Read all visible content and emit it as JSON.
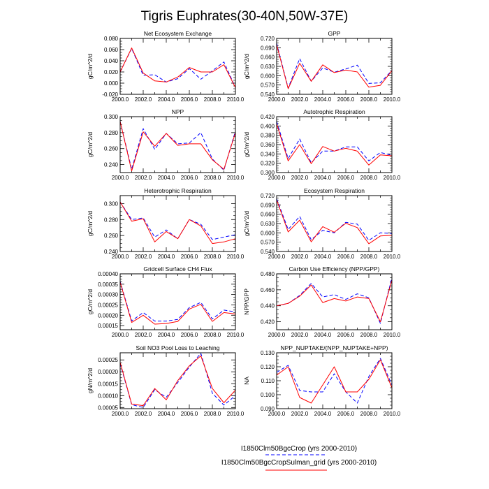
{
  "page": {
    "title": "Tigris Euphrates(30-40N,50W-37E)"
  },
  "legend": [
    {
      "label": "I1850Clm50BgcCrop (yrs 2000-2010)",
      "color": "#0000ff",
      "dash": "dashed"
    },
    {
      "label": "I1850Clm50BgcCropSulman_grid (yrs 2000-2010)",
      "color": "#ff0000",
      "dash": "solid"
    }
  ],
  "colors": {
    "series_a": "#0000ff",
    "series_b": "#ff0000"
  },
  "chart_data": [
    {
      "type": "line",
      "title": "Net Ecosystem Exchange",
      "ylabel": "gC/m^2/d",
      "x": [
        2000,
        2001,
        2002,
        2003,
        2004,
        2005,
        2006,
        2007,
        2008,
        2009,
        2010
      ],
      "xticks": [
        "2000.0",
        "2002.0",
        "2004.0",
        "2006.0",
        "2008.0",
        "2010.0"
      ],
      "xlim": [
        2000,
        2010
      ],
      "ylim": [
        -0.02,
        0.08
      ],
      "yticks": [
        "-0.020",
        "0.000",
        "0.020",
        "0.040",
        "0.060",
        "0.080"
      ],
      "series": [
        {
          "name": "I1850Clm50BgcCrop (yrs 2000-2010)",
          "values": [
            0.02,
            0.062,
            0.014,
            0.015,
            0.002,
            0.008,
            0.026,
            0.007,
            0.022,
            0.038,
            -0.008
          ]
        },
        {
          "name": "I1850Clm50BgcCropSulman_grid (yrs 2000-2010)",
          "values": [
            0.02,
            0.063,
            0.018,
            0.004,
            0.002,
            0.011,
            0.028,
            0.02,
            0.02,
            0.033,
            -0.008
          ]
        }
      ]
    },
    {
      "type": "line",
      "title": "GPP",
      "ylabel": "gC/m^2/d",
      "x": [
        2000,
        2001,
        2002,
        2003,
        2004,
        2005,
        2006,
        2007,
        2008,
        2009,
        2010
      ],
      "xticks": [
        "2000.0",
        "2002.0",
        "2004.0",
        "2006.0",
        "2008.0",
        "2010.0"
      ],
      "xlim": [
        2000,
        2010
      ],
      "ylim": [
        0.54,
        0.72
      ],
      "yticks": [
        "0.540",
        "0.570",
        "0.600",
        "0.630",
        "0.660",
        "0.690",
        "0.720"
      ],
      "series": [
        {
          "name": "I1850Clm50BgcCrop (yrs 2000-2010)",
          "values": [
            0.705,
            0.56,
            0.655,
            0.582,
            0.625,
            0.611,
            0.622,
            0.634,
            0.575,
            0.577,
            0.617
          ]
        },
        {
          "name": "I1850Clm50BgcCropSulman_grid (yrs 2000-2010)",
          "values": [
            0.7,
            0.558,
            0.64,
            0.582,
            0.635,
            0.61,
            0.618,
            0.612,
            0.563,
            0.569,
            0.616
          ]
        }
      ]
    },
    {
      "type": "line",
      "title": "NPP",
      "ylabel": "gC/m^2/d",
      "x": [
        2000,
        2001,
        2002,
        2003,
        2004,
        2005,
        2006,
        2007,
        2008,
        2009,
        2010
      ],
      "xticks": [
        "2000.0",
        "2002.0",
        "2004.0",
        "2006.0",
        "2008.0",
        "2010.0"
      ],
      "xlim": [
        2000,
        2010
      ],
      "ylim": [
        0.23,
        0.3
      ],
      "yticks": [
        "0.240",
        "0.260",
        "0.280",
        "0.300"
      ],
      "series": [
        {
          "name": "I1850Clm50BgcCrop (yrs 2000-2010)",
          "values": [
            0.294,
            0.234,
            0.285,
            0.259,
            0.279,
            0.266,
            0.267,
            0.28,
            0.247,
            0.233,
            0.282
          ]
        },
        {
          "name": "I1850Clm50BgcCropSulman_grid (yrs 2000-2010)",
          "values": [
            0.294,
            0.232,
            0.281,
            0.263,
            0.279,
            0.264,
            0.266,
            0.266,
            0.246,
            0.234,
            0.28
          ]
        }
      ]
    },
    {
      "type": "line",
      "title": "Autotrophic Respiration",
      "ylabel": "gC/m^2/d",
      "x": [
        2000,
        2001,
        2002,
        2003,
        2004,
        2005,
        2006,
        2007,
        2008,
        2009,
        2010
      ],
      "xticks": [
        "2000.0",
        "2002.0",
        "2004.0",
        "2006.0",
        "2008.0",
        "2010.0"
      ],
      "xlim": [
        2000,
        2010
      ],
      "ylim": [
        0.3,
        0.42
      ],
      "yticks": [
        "0.300",
        "0.320",
        "0.340",
        "0.360",
        "0.380",
        "0.400",
        "0.420"
      ],
      "series": [
        {
          "name": "I1850Clm50BgcCrop (yrs 2000-2010)",
          "values": [
            0.41,
            0.33,
            0.372,
            0.321,
            0.346,
            0.346,
            0.355,
            0.355,
            0.325,
            0.343,
            0.337
          ]
        },
        {
          "name": "I1850Clm50BgcCropSulman_grid (yrs 2000-2010)",
          "values": [
            0.405,
            0.325,
            0.36,
            0.319,
            0.356,
            0.346,
            0.352,
            0.346,
            0.316,
            0.338,
            0.336
          ]
        }
      ]
    },
    {
      "type": "line",
      "title": "Heterotrophic Respiration",
      "ylabel": "gC/m^2/d",
      "x": [
        2000,
        2001,
        2002,
        2003,
        2004,
        2005,
        2006,
        2007,
        2008,
        2009,
        2010
      ],
      "xticks": [
        "2000.0",
        "2002.0",
        "2004.0",
        "2006.0",
        "2008.0",
        "2010.0"
      ],
      "xlim": [
        2000,
        2010
      ],
      "ylim": [
        0.24,
        0.31
      ],
      "yticks": [
        "0.240",
        "0.260",
        "0.280",
        "0.300"
      ],
      "series": [
        {
          "name": "I1850Clm50BgcCrop (yrs 2000-2010)",
          "values": [
            0.302,
            0.28,
            0.282,
            0.258,
            0.267,
            0.256,
            0.28,
            0.274,
            0.255,
            0.258,
            0.261
          ]
        },
        {
          "name": "I1850Clm50BgcCropSulman_grid (yrs 2000-2010)",
          "values": [
            0.302,
            0.278,
            0.281,
            0.252,
            0.265,
            0.256,
            0.28,
            0.272,
            0.25,
            0.252,
            0.256
          ]
        }
      ]
    },
    {
      "type": "line",
      "title": "Ecosystem Respiration",
      "ylabel": "gC/m^2/d",
      "x": [
        2000,
        2001,
        2002,
        2003,
        2004,
        2005,
        2006,
        2007,
        2008,
        2009,
        2010
      ],
      "xticks": [
        "2000.0",
        "2002.0",
        "2004.0",
        "2006.0",
        "2008.0",
        "2010.0"
      ],
      "xlim": [
        2000,
        2010
      ],
      "ylim": [
        0.54,
        0.72
      ],
      "yticks": [
        "0.540",
        "0.570",
        "0.600",
        "0.630",
        "0.660",
        "0.690",
        "0.720"
      ],
      "series": [
        {
          "name": "I1850Clm50BgcCrop (yrs 2000-2010)",
          "values": [
            0.71,
            0.611,
            0.653,
            0.578,
            0.608,
            0.6,
            0.634,
            0.628,
            0.576,
            0.6,
            0.598
          ]
        },
        {
          "name": "I1850Clm50BgcCropSulman_grid (yrs 2000-2010)",
          "values": [
            0.706,
            0.603,
            0.641,
            0.571,
            0.62,
            0.602,
            0.631,
            0.617,
            0.565,
            0.59,
            0.592
          ]
        }
      ]
    },
    {
      "type": "line",
      "title": "Gridcell Surface CH4 Flux",
      "ylabel": "gC/m^2/d",
      "x": [
        2000,
        2001,
        2002,
        2003,
        2004,
        2005,
        2006,
        2007,
        2008,
        2009,
        2010
      ],
      "xticks": [
        "2000.0",
        "2002.0",
        "2004.0",
        "2006.0",
        "2008.0",
        "2010.0"
      ],
      "xlim": [
        2000,
        2010
      ],
      "ylim": [
        0.00013,
        0.0004
      ],
      "yticks": [
        "0.00015",
        "0.00020",
        "0.00025",
        "0.00030",
        "0.00035",
        "0.00040"
      ],
      "series": [
        {
          "name": "I1850Clm50BgcCrop (yrs 2000-2010)",
          "values": [
            0.000363,
            0.000173,
            0.000213,
            0.000172,
            0.000172,
            0.00018,
            0.000237,
            0.000262,
            0.000182,
            0.000225,
            0.000216
          ]
        },
        {
          "name": "I1850Clm50BgcCropSulman_grid (yrs 2000-2010)",
          "values": [
            0.00036,
            0.000165,
            0.0002,
            0.000157,
            0.00016,
            0.00017,
            0.00023,
            0.000253,
            0.00017,
            0.000213,
            0.000206
          ]
        }
      ]
    },
    {
      "type": "line",
      "title": "Carbon Use Efficiency (NPP/GPP)",
      "ylabel": "NPP/GPP",
      "x": [
        2000,
        2001,
        2002,
        2003,
        2004,
        2005,
        2006,
        2007,
        2008,
        2009,
        2010
      ],
      "xticks": [
        "2000.0",
        "2002.0",
        "2004.0",
        "2006.0",
        "2008.0",
        "2010.0"
      ],
      "xlim": [
        2000,
        2010
      ],
      "ylim": [
        0.41,
        0.48
      ],
      "yticks": [
        "0.420",
        "0.440",
        "0.460",
        "0.480"
      ],
      "series": [
        {
          "name": "I1850Clm50BgcCrop (yrs 2000-2010)",
          "values": [
            0.44,
            0.443,
            0.453,
            0.468,
            0.451,
            0.454,
            0.448,
            0.455,
            0.45,
            0.418,
            0.475
          ]
        },
        {
          "name": "I1850Clm50BgcCropSulman_grid (yrs 2000-2010)",
          "values": [
            0.44,
            0.443,
            0.452,
            0.466,
            0.444,
            0.449,
            0.446,
            0.451,
            0.449,
            0.42,
            0.472
          ]
        }
      ]
    },
    {
      "type": "line",
      "title": "Soil NO3 Pool Loss to Leaching",
      "ylabel": "gN/m^2/d",
      "x": [
        2000,
        2001,
        2002,
        2003,
        2004,
        2005,
        2006,
        2007,
        2008,
        2009,
        2010
      ],
      "xticks": [
        "2000.0",
        "2002.0",
        "2004.0",
        "2006.0",
        "2008.0",
        "2010.0"
      ],
      "xlim": [
        2000,
        2010
      ],
      "ylim": [
        4.5e-05,
        0.00028
      ],
      "yticks": [
        "0.00005",
        "0.00010",
        "0.00015",
        "0.00020",
        "0.00025"
      ],
      "series": [
        {
          "name": "I1850Clm50BgcCrop (yrs 2000-2010)",
          "values": [
            0.000235,
            6.2e-05,
            5e-05,
            0.000125,
            9.3e-05,
            0.000155,
            0.00022,
            0.000278,
            0.00011,
            6e-05,
            0.0001
          ]
        },
        {
          "name": "I1850Clm50BgcCropSulman_grid (yrs 2000-2010)",
          "values": [
            0.00024,
            6.4e-05,
            5.8e-05,
            0.00013,
            8.2e-05,
            0.000163,
            0.000225,
            0.000267,
            0.00013,
            7e-05,
            0.000123
          ]
        }
      ]
    },
    {
      "type": "line",
      "title": "NPP_NUPTAKE/(NPP_NUPTAKE+NPP)",
      "ylabel": "NA",
      "x": [
        2000,
        2001,
        2002,
        2003,
        2004,
        2005,
        2006,
        2007,
        2008,
        2009,
        2010
      ],
      "xticks": [
        "2000.0",
        "2002.0",
        "2004.0",
        "2006.0",
        "2008.0",
        "2010.0"
      ],
      "xlim": [
        2000,
        2010
      ],
      "ylim": [
        0.09,
        0.13
      ],
      "yticks": [
        "0.090",
        "0.100",
        "0.110",
        "0.120",
        "0.130"
      ],
      "series": [
        {
          "name": "I1850Clm50BgcCrop (yrs 2000-2010)",
          "values": [
            0.116,
            0.121,
            0.103,
            0.102,
            0.102,
            0.115,
            0.102,
            0.094,
            0.113,
            0.126,
            0.107
          ]
        },
        {
          "name": "I1850Clm50BgcCropSulman_grid (yrs 2000-2010)",
          "values": [
            0.114,
            0.12,
            0.098,
            0.094,
            0.107,
            0.12,
            0.102,
            0.102,
            0.111,
            0.125,
            0.105
          ]
        }
      ]
    }
  ]
}
